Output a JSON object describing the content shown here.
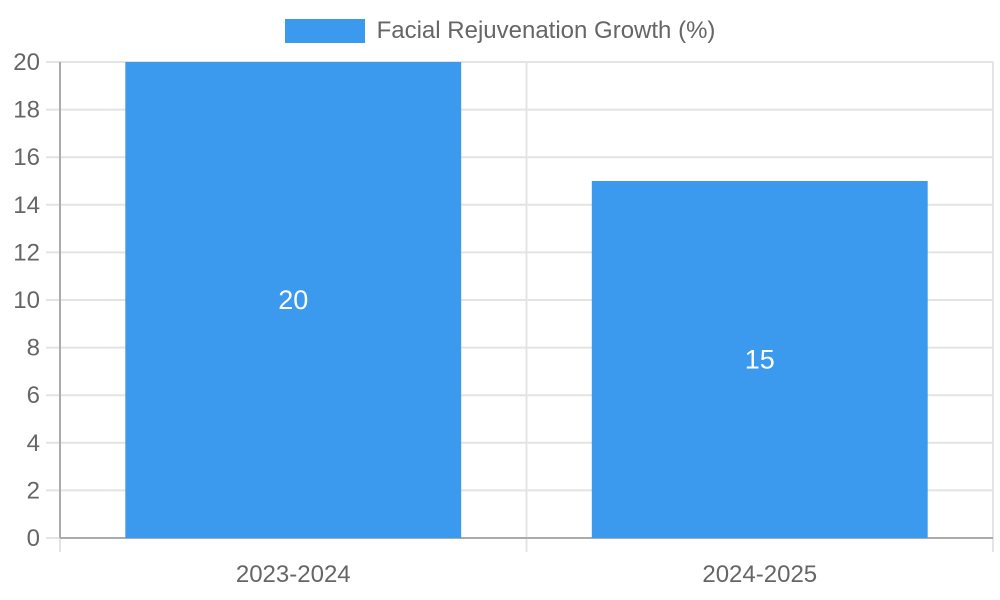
{
  "chart_data": {
    "type": "bar",
    "title": "Facial Rejuvenation Growth (%)",
    "categories": [
      "2023-2024",
      "2024-2025"
    ],
    "series": [
      {
        "name": "Facial Rejuvenation Growth (%)",
        "values": [
          20,
          15
        ]
      }
    ],
    "value_labels": [
      "20",
      "15"
    ],
    "xlabel": "",
    "ylabel": "",
    "ylim": [
      0,
      20
    ],
    "y_ticks": [
      0,
      2,
      4,
      6,
      8,
      10,
      12,
      14,
      16,
      18,
      20
    ],
    "grid": true,
    "legend_position": "top"
  },
  "legend": {
    "label": "Facial Rejuvenation Growth (%)"
  },
  "colors": {
    "bar": "#3B99EE",
    "legend_swatch": "#3B99EE",
    "tick_text": "#666666",
    "legend_text": "#666666",
    "gridline": "#E4E4E4",
    "axis_border": "#ABABAB",
    "value_label_text": "#FFFFFF",
    "background": "#FFFFFF"
  }
}
